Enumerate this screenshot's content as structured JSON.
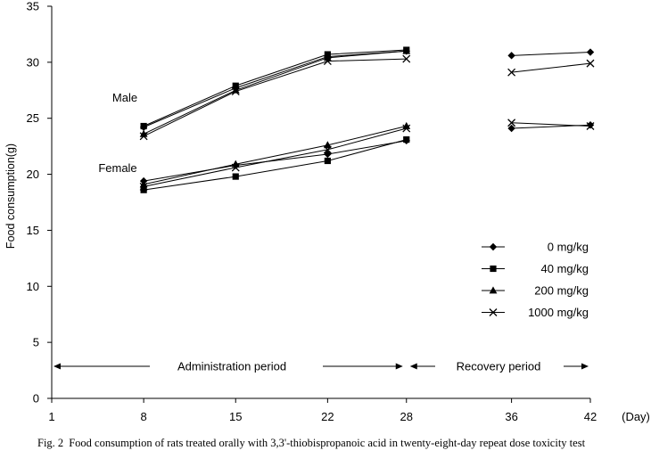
{
  "chart_data": {
    "type": "line",
    "ylabel": "Food consumption(g)",
    "xlabel_unit": "(Day)",
    "ylim": [
      0,
      35
    ],
    "yticks": [
      0,
      5,
      10,
      15,
      20,
      25,
      30,
      35
    ],
    "xlim": [
      1,
      42
    ],
    "xticks": [
      1,
      8,
      15,
      22,
      28,
      36,
      42
    ],
    "group_labels": {
      "male": "Male",
      "female": "Female"
    },
    "periods": {
      "administration": {
        "label": "Administration period",
        "start": 1,
        "end": 28
      },
      "recovery": {
        "label": "Recovery period",
        "start": 28,
        "end": 42
      }
    },
    "legend": [
      {
        "label": "0 mg/kg",
        "marker": "diamond"
      },
      {
        "label": "40 mg/kg",
        "marker": "square"
      },
      {
        "label": "200 mg/kg",
        "marker": "triangle"
      },
      {
        "label": "1000 mg/kg",
        "marker": "cross"
      }
    ],
    "series": [
      {
        "name": "Male 0 mg/kg",
        "group": "male",
        "marker": "diamond",
        "admin": {
          "x": [
            8,
            15,
            22,
            28
          ],
          "y": [
            24.2,
            27.7,
            30.5,
            31.0
          ]
        },
        "recovery": {
          "x": [
            36,
            42
          ],
          "y": [
            30.6,
            30.9
          ]
        }
      },
      {
        "name": "Male 40 mg/kg",
        "group": "male",
        "marker": "square",
        "admin": {
          "x": [
            8,
            15,
            22,
            28
          ],
          "y": [
            24.3,
            27.9,
            30.7,
            31.1
          ]
        },
        "recovery": null
      },
      {
        "name": "Male 200 mg/kg",
        "group": "male",
        "marker": "triangle",
        "admin": {
          "x": [
            8,
            15,
            22,
            28
          ],
          "y": [
            23.6,
            27.5,
            30.4,
            31.0
          ]
        },
        "recovery": null
      },
      {
        "name": "Male 1000 mg/kg",
        "group": "male",
        "marker": "cross",
        "admin": {
          "x": [
            8,
            15,
            22,
            28
          ],
          "y": [
            23.4,
            27.4,
            30.1,
            30.3
          ]
        },
        "recovery": {
          "x": [
            36,
            42
          ],
          "y": [
            29.1,
            29.9
          ]
        }
      },
      {
        "name": "Female 0 mg/kg",
        "group": "female",
        "marker": "diamond",
        "admin": {
          "x": [
            8,
            15,
            22,
            28
          ],
          "y": [
            19.4,
            20.8,
            21.8,
            23.0
          ]
        },
        "recovery": {
          "x": [
            36,
            42
          ],
          "y": [
            24.1,
            24.4
          ]
        }
      },
      {
        "name": "Female 40 mg/kg",
        "group": "female",
        "marker": "square",
        "admin": {
          "x": [
            8,
            15,
            22,
            28
          ],
          "y": [
            18.6,
            19.8,
            21.2,
            23.1
          ]
        },
        "recovery": null
      },
      {
        "name": "Female 200 mg/kg",
        "group": "female",
        "marker": "triangle",
        "admin": {
          "x": [
            8,
            15,
            22,
            28
          ],
          "y": [
            19.1,
            20.9,
            22.6,
            24.3
          ]
        },
        "recovery": null
      },
      {
        "name": "Female 1000 mg/kg",
        "group": "female",
        "marker": "cross",
        "admin": {
          "x": [
            8,
            15,
            22,
            28
          ],
          "y": [
            18.9,
            20.6,
            22.2,
            24.1
          ]
        },
        "recovery": {
          "x": [
            36,
            42
          ],
          "y": [
            24.6,
            24.3
          ]
        }
      }
    ]
  },
  "caption": {
    "number": "Fig. 2",
    "text": "Food consumption of rats treated orally with 3,3'-thiobispropanoic acid in twenty-eight-day repeat dose toxicity test"
  }
}
